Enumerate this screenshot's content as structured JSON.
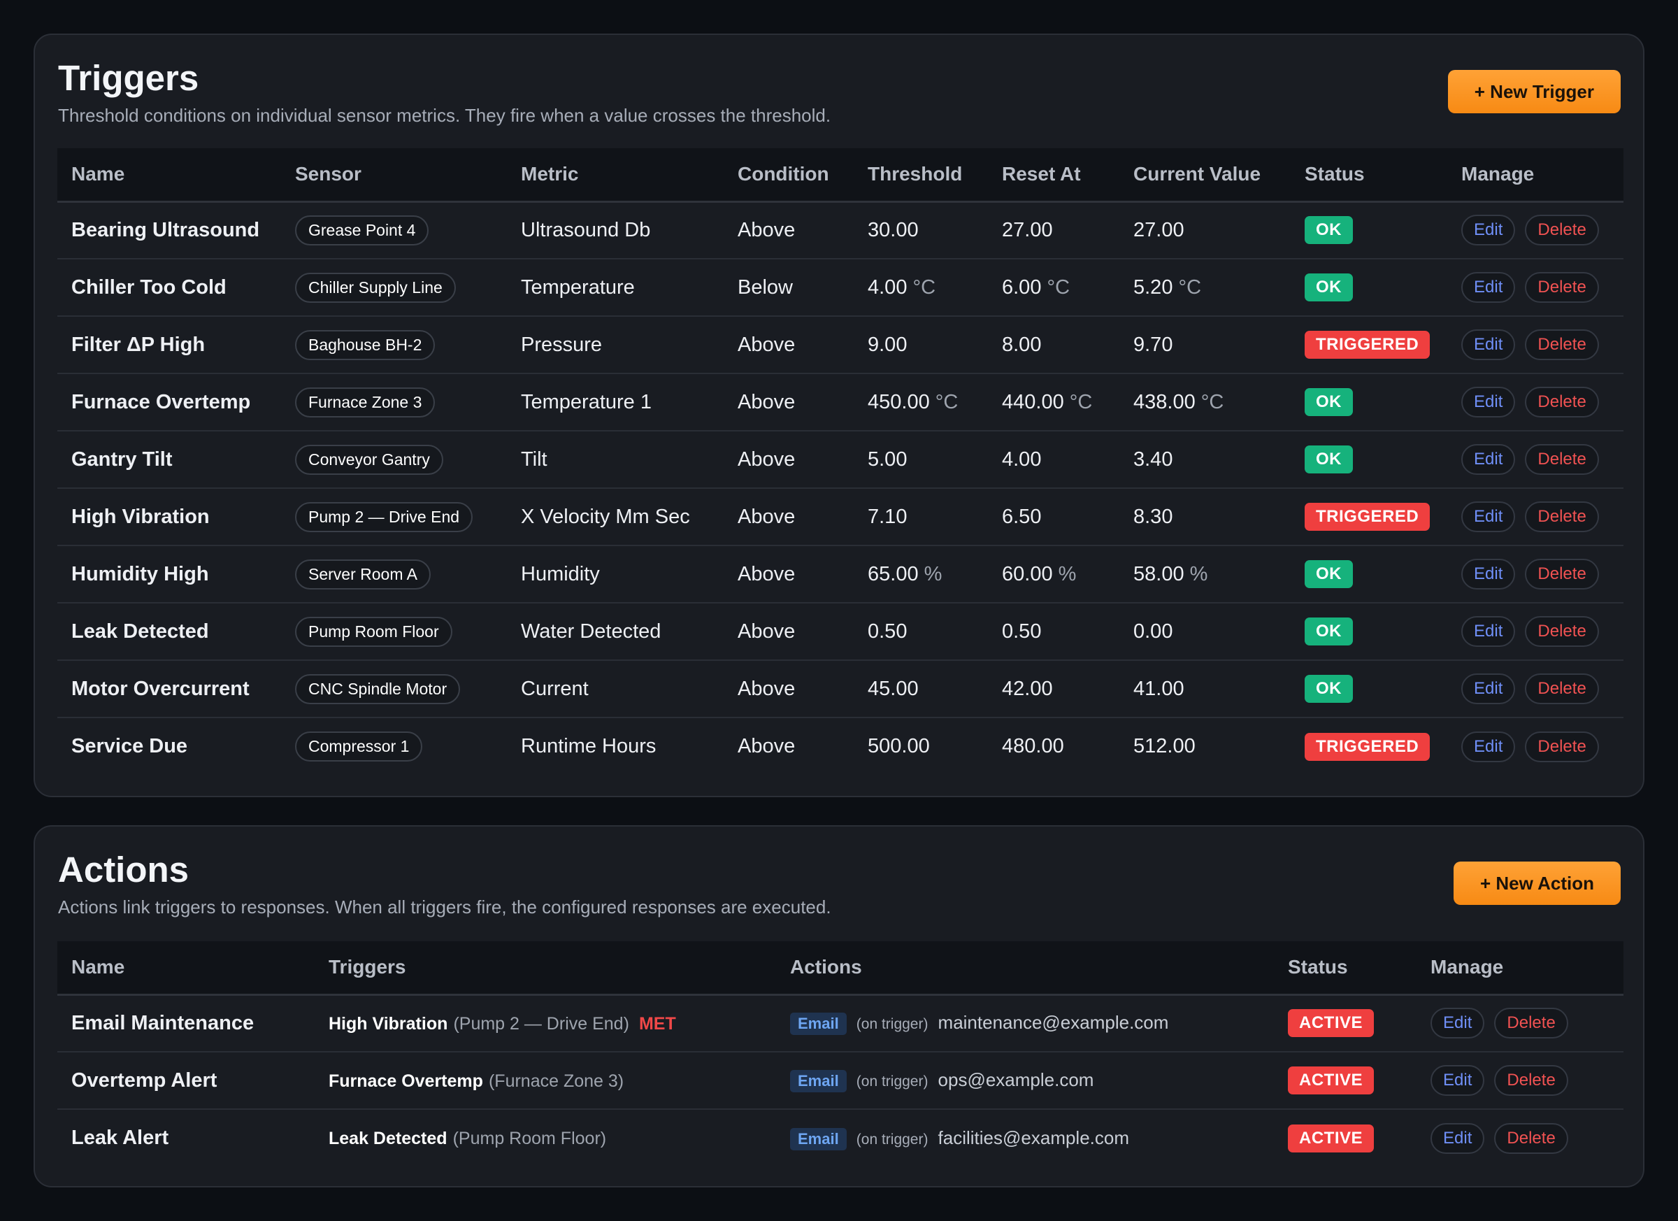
{
  "triggers_panel": {
    "title": "Triggers",
    "subtitle": "Threshold conditions on individual sensor metrics. They fire when a value crosses the threshold.",
    "new_button": "+ New Trigger",
    "columns": [
      "Name",
      "Sensor",
      "Metric",
      "Condition",
      "Threshold",
      "Reset At",
      "Current Value",
      "Status",
      "Manage"
    ],
    "rows": [
      {
        "name": "Bearing Ultrasound",
        "sensor": "Grease Point 4",
        "metric": "Ultrasound Db",
        "condition": "Above",
        "threshold": "30.00",
        "threshold_unit": "",
        "reset": "27.00",
        "reset_unit": "",
        "current": "27.00",
        "current_unit": "",
        "status": "OK"
      },
      {
        "name": "Chiller Too Cold",
        "sensor": "Chiller Supply Line",
        "metric": "Temperature",
        "condition": "Below",
        "threshold": "4.00",
        "threshold_unit": "°C",
        "reset": "6.00",
        "reset_unit": "°C",
        "current": "5.20",
        "current_unit": "°C",
        "status": "OK"
      },
      {
        "name": "Filter ΔP High",
        "sensor": "Baghouse BH-2",
        "metric": "Pressure",
        "condition": "Above",
        "threshold": "9.00",
        "threshold_unit": "",
        "reset": "8.00",
        "reset_unit": "",
        "current": "9.70",
        "current_unit": "",
        "status": "TRIGGERED"
      },
      {
        "name": "Furnace Overtemp",
        "sensor": "Furnace Zone 3",
        "metric": "Temperature 1",
        "condition": "Above",
        "threshold": "450.00",
        "threshold_unit": "°C",
        "reset": "440.00",
        "reset_unit": "°C",
        "current": "438.00",
        "current_unit": "°C",
        "status": "OK"
      },
      {
        "name": "Gantry Tilt",
        "sensor": "Conveyor Gantry",
        "metric": "Tilt",
        "condition": "Above",
        "threshold": "5.00",
        "threshold_unit": "",
        "reset": "4.00",
        "reset_unit": "",
        "current": "3.40",
        "current_unit": "",
        "status": "OK"
      },
      {
        "name": "High Vibration",
        "sensor": "Pump 2 — Drive End",
        "metric": "X Velocity Mm Sec",
        "condition": "Above",
        "threshold": "7.10",
        "threshold_unit": "",
        "reset": "6.50",
        "reset_unit": "",
        "current": "8.30",
        "current_unit": "",
        "status": "TRIGGERED"
      },
      {
        "name": "Humidity High",
        "sensor": "Server Room A",
        "metric": "Humidity",
        "condition": "Above",
        "threshold": "65.00",
        "threshold_unit": "%",
        "reset": "60.00",
        "reset_unit": "%",
        "current": "58.00",
        "current_unit": "%",
        "status": "OK"
      },
      {
        "name": "Leak Detected",
        "sensor": "Pump Room Floor",
        "metric": "Water Detected",
        "condition": "Above",
        "threshold": "0.50",
        "threshold_unit": "",
        "reset": "0.50",
        "reset_unit": "",
        "current": "0.00",
        "current_unit": "",
        "status": "OK"
      },
      {
        "name": "Motor Overcurrent",
        "sensor": "CNC Spindle Motor",
        "metric": "Current",
        "condition": "Above",
        "threshold": "45.00",
        "threshold_unit": "",
        "reset": "42.00",
        "reset_unit": "",
        "current": "41.00",
        "current_unit": "",
        "status": "OK"
      },
      {
        "name": "Service Due",
        "sensor": "Compressor 1",
        "metric": "Runtime Hours",
        "condition": "Above",
        "threshold": "500.00",
        "threshold_unit": "",
        "reset": "480.00",
        "reset_unit": "",
        "current": "512.00",
        "current_unit": "",
        "status": "TRIGGERED"
      }
    ]
  },
  "actions_panel": {
    "title": "Actions",
    "subtitle": "Actions link triggers to responses. When all triggers fire, the configured responses are executed.",
    "new_button": "+ New Action",
    "columns": [
      "Name",
      "Triggers",
      "Actions",
      "Status",
      "Manage"
    ],
    "rows": [
      {
        "name": "Email Maintenance",
        "trigger_name": "High Vibration",
        "trigger_sensor": "(Pump 2 — Drive End)",
        "met": "MET",
        "action_type": "Email",
        "action_when": "(on trigger)",
        "action_target": "maintenance@example.com",
        "status": "ACTIVE"
      },
      {
        "name": "Overtemp Alert",
        "trigger_name": "Furnace Overtemp",
        "trigger_sensor": "(Furnace Zone 3)",
        "met": "",
        "action_type": "Email",
        "action_when": "(on trigger)",
        "action_target": "ops@example.com",
        "status": "ACTIVE"
      },
      {
        "name": "Leak Alert",
        "trigger_name": "Leak Detected",
        "trigger_sensor": "(Pump Room Floor)",
        "met": "",
        "action_type": "Email",
        "action_when": "(on trigger)",
        "action_target": "facilities@example.com",
        "status": "ACTIVE"
      }
    ]
  },
  "manage": {
    "edit": "Edit",
    "delete": "Delete"
  },
  "colors": {
    "accent": "#f78a14",
    "ok": "#16b27c",
    "triggered": "#ef3f3f",
    "active": "#ef3f3f",
    "link": "#6f8ff7"
  }
}
